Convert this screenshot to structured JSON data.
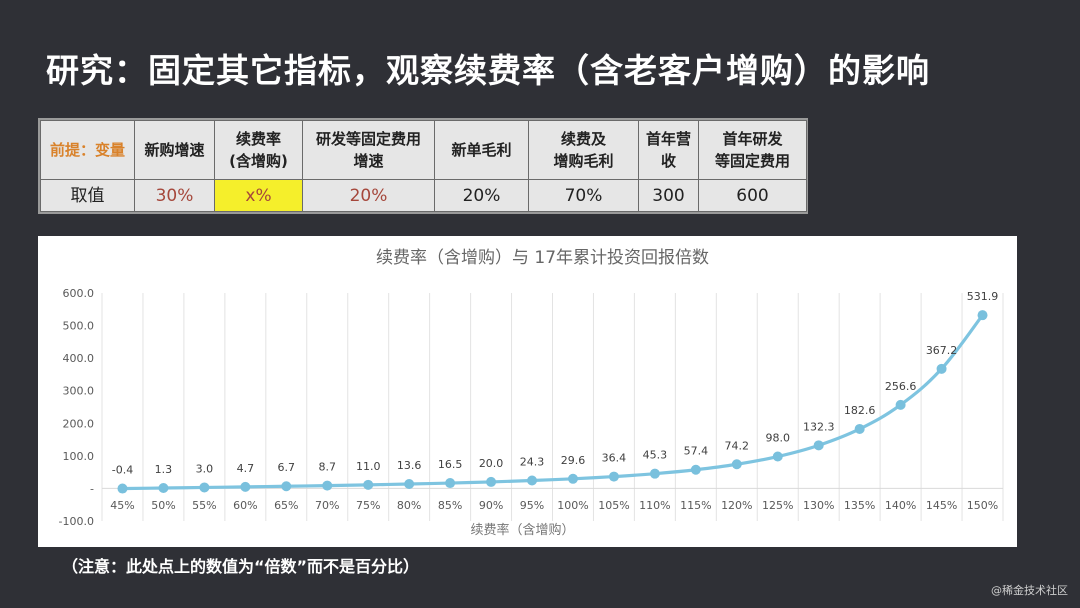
{
  "page": {
    "title": "研究：固定其它指标，观察续费率（含老客户增购）的影响",
    "note": "（注意：此处点上的数值为“倍数”而不是百分比）",
    "watermark": "@稀金技术社区"
  },
  "params_table": {
    "headers": [
      "前提：变量",
      "新购增速",
      "续费率\n(含增购)",
      "研发等固定费用\n增速",
      "新单毛利",
      "续费及\n增购毛利",
      "首年营\n收",
      "首年研发\n等固定费用"
    ],
    "values": [
      "取值",
      "30%",
      "x%",
      "20%",
      "20%",
      "70%",
      "300",
      "600"
    ]
  },
  "colors": {
    "background": "#2f3036",
    "line": "#7ec4e0",
    "marker": "#79c0dd",
    "highlight": "#f5ef2b",
    "premise_text": "#d9822b",
    "value_red": "#a5473b"
  },
  "chart_data": {
    "type": "line",
    "title": "续费率（含增购）与 17年累计投资回报倍数",
    "xlabel": "续费率（含增购）",
    "ylabel": "",
    "categories": [
      "45%",
      "50%",
      "55%",
      "60%",
      "65%",
      "70%",
      "75%",
      "80%",
      "85%",
      "90%",
      "95%",
      "100%",
      "105%",
      "110%",
      "115%",
      "120%",
      "125%",
      "130%",
      "135%",
      "140%",
      "145%",
      "150%"
    ],
    "values": [
      -0.4,
      1.3,
      3.0,
      4.7,
      6.7,
      8.7,
      11.0,
      13.6,
      16.5,
      20.0,
      24.3,
      29.6,
      36.4,
      45.3,
      57.4,
      74.2,
      98.0,
      132.3,
      182.6,
      256.6,
      367.2,
      531.9
    ],
    "value_labels": [
      "-0.4",
      "1.3",
      "3.0",
      "4.7",
      "6.7",
      "8.7",
      "11.0",
      "13.6",
      "16.5",
      "20.0",
      "24.3",
      "29.6",
      "36.4",
      "45.3",
      "57.4",
      "74.2",
      "98.0",
      "132.3",
      "182.6",
      "256.6",
      "367.2",
      "531.9"
    ],
    "ylim": [
      -100,
      600
    ],
    "y_ticks": [
      "-100.0",
      "-",
      "100.0",
      "200.0",
      "300.0",
      "400.0",
      "500.0",
      "600.0"
    ],
    "grid": "vertical",
    "legend": "none",
    "smooth": true
  }
}
